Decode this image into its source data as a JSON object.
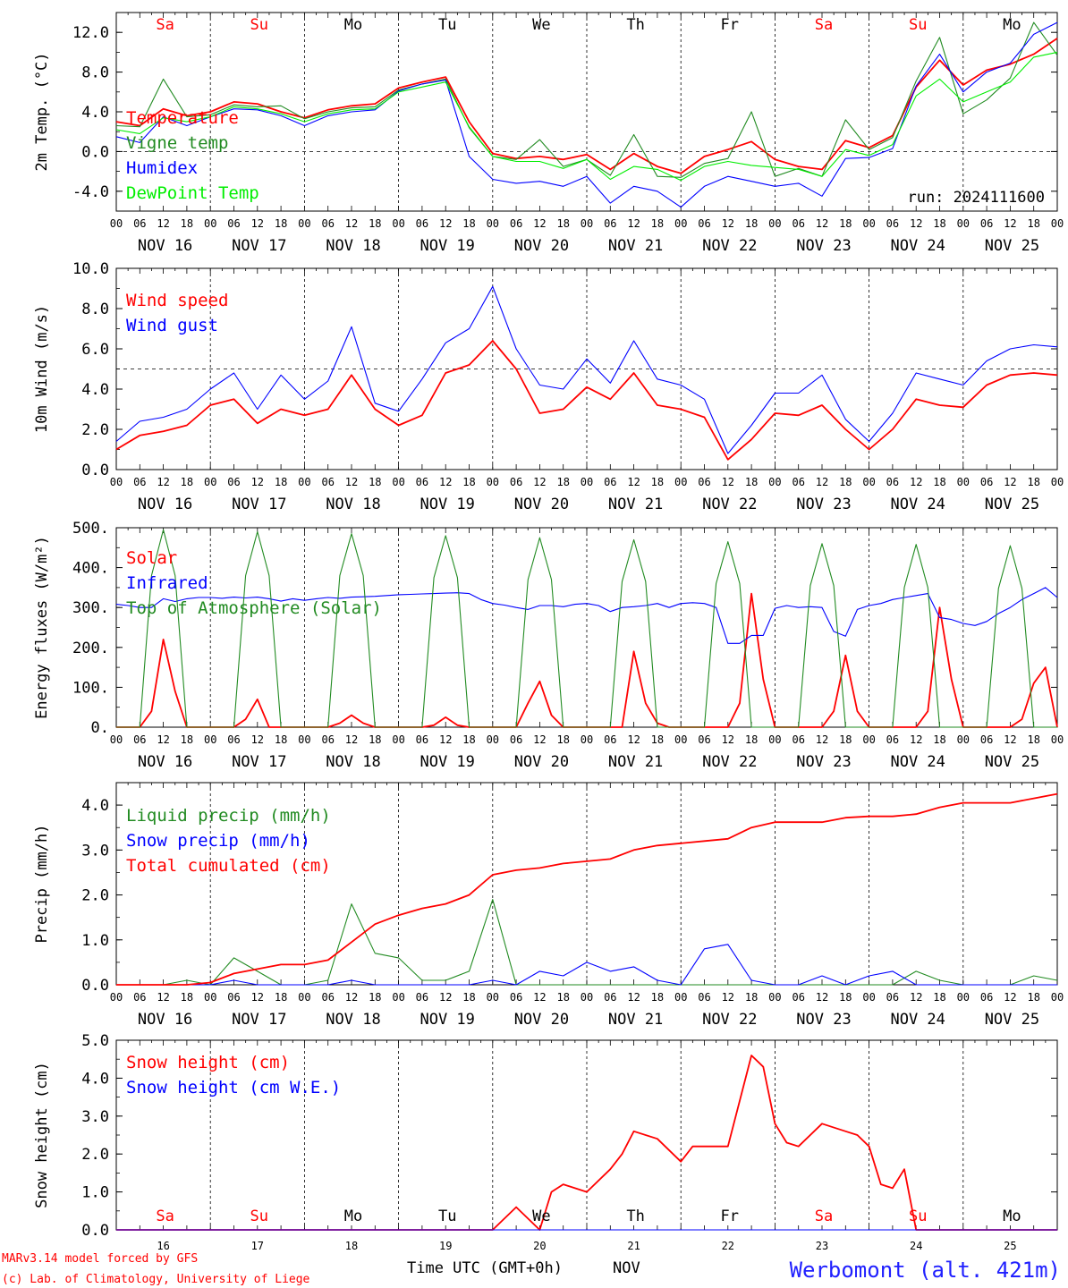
{
  "footer": {
    "model_line": "MARv3.14 model forced by GFS",
    "copyright_line": "(c) Lab. of Climatology, University of Liege",
    "xlabel": "Time UTC (GMT+0h)",
    "month": "NOV",
    "station": "Werbomont (alt. 421m)"
  },
  "day_abbrevs": [
    "Sa",
    "Su",
    "Mo",
    "Tu",
    "We",
    "Th",
    "Fr",
    "Sa",
    "Su",
    "Mo"
  ],
  "weekend_color": "#ff0000",
  "weekday_color": "#000000",
  "date_labels": [
    "NOV 16",
    "NOV 17",
    "NOV 18",
    "NOV 19",
    "NOV 20",
    "NOV 21",
    "NOV 22",
    "NOV 23",
    "NOV 24",
    "NOV 25"
  ],
  "day_numbers": [
    "16",
    "17",
    "18",
    "19",
    "20",
    "21",
    "22",
    "23",
    "24",
    "25"
  ],
  "hour_ticks": [
    "00",
    "06",
    "12",
    "18"
  ],
  "colors": {
    "red": "#ff0000",
    "green": "#228b22",
    "blue": "#0000ff",
    "lime": "#00ee00",
    "station": "#2020ff"
  },
  "chart_data": [
    {
      "type": "line",
      "ylabel": "2m Temp. (°C)",
      "ylim": [
        -6,
        14
      ],
      "yticks": [
        "-4.0",
        "0.0",
        "4.0",
        "8.0",
        "12.0"
      ],
      "ytick_values": [
        -4,
        0,
        4,
        8,
        12
      ],
      "reference_line": 0,
      "annotation": "run: 2024111600",
      "x_hours": [
        0,
        6,
        12,
        18,
        24,
        30,
        36,
        42,
        48,
        54,
        60,
        66,
        72,
        78,
        84,
        90,
        96,
        102,
        108,
        114,
        120,
        126,
        132,
        138,
        144,
        150,
        156,
        162,
        168,
        174,
        180,
        186,
        192,
        198,
        204,
        210,
        216,
        222,
        228,
        234,
        240
      ],
      "series": [
        {
          "name": "Temperature",
          "color": "red",
          "values": [
            3.0,
            2.6,
            4.3,
            3.6,
            4.0,
            5.0,
            4.8,
            4.0,
            3.4,
            4.2,
            4.6,
            4.8,
            6.4,
            7.0,
            7.5,
            3.0,
            -0.2,
            -0.7,
            -0.5,
            -0.8,
            -0.3,
            -1.8,
            -0.2,
            -1.5,
            -2.2,
            -0.5,
            0.2,
            1.0,
            -0.8,
            -1.5,
            -1.8,
            1.1,
            0.4,
            1.6,
            6.5,
            9.2,
            6.7,
            8.2,
            8.8,
            9.8,
            11.4
          ]
        },
        {
          "name": "Vigne temp",
          "color": "green",
          "values": [
            2.6,
            2.5,
            7.3,
            3.5,
            3.7,
            4.7,
            4.5,
            4.6,
            3.3,
            4.0,
            4.4,
            4.5,
            6.2,
            6.8,
            7.3,
            2.4,
            -0.5,
            -0.8,
            1.2,
            -1.5,
            -0.8,
            -2.4,
            1.7,
            -2.5,
            -2.6,
            -1.2,
            -0.7,
            4.0,
            -2.5,
            -1.7,
            -2.5,
            3.2,
            0.2,
            1.4,
            7.1,
            11.5,
            3.8,
            5.2,
            7.4,
            13.0,
            9.7
          ]
        },
        {
          "name": "Humidex",
          "color": "blue",
          "values": [
            1.5,
            0.9,
            3.5,
            2.6,
            3.5,
            4.3,
            4.2,
            3.6,
            2.6,
            3.6,
            4.0,
            4.2,
            6.1,
            6.8,
            7.2,
            -0.5,
            -2.8,
            -3.2,
            -3.0,
            -3.5,
            -2.5,
            -5.2,
            -3.5,
            -4.0,
            -5.6,
            -3.5,
            -2.5,
            -3.0,
            -3.5,
            -3.2,
            -4.5,
            -0.7,
            -0.6,
            0.3,
            6.6,
            9.8,
            6.0,
            8.0,
            8.9,
            11.8,
            13.0
          ]
        },
        {
          "name": "DewPoint Temp",
          "color": "lime",
          "values": [
            2.2,
            1.8,
            3.4,
            3.0,
            3.5,
            4.5,
            4.3,
            3.8,
            3.0,
            3.8,
            4.2,
            4.3,
            6.0,
            6.5,
            7.0,
            2.5,
            -0.5,
            -1.0,
            -1.0,
            -1.7,
            -0.8,
            -2.8,
            -1.5,
            -1.8,
            -2.9,
            -1.5,
            -1.0,
            -1.4,
            -1.6,
            -1.8,
            -2.5,
            0.2,
            -0.4,
            0.7,
            5.6,
            7.3,
            5.0,
            6.0,
            7.0,
            9.5,
            10.0
          ]
        }
      ]
    },
    {
      "type": "line",
      "ylabel": "10m Wind (m/s)",
      "ylim": [
        0,
        10
      ],
      "yticks": [
        "0.0",
        "2.0",
        "4.0",
        "6.0",
        "8.0",
        "10.0"
      ],
      "ytick_values": [
        0,
        2,
        4,
        6,
        8,
        10
      ],
      "reference_line": 5,
      "x_hours": [
        0,
        6,
        12,
        18,
        24,
        30,
        36,
        42,
        48,
        54,
        60,
        66,
        72,
        78,
        84,
        90,
        96,
        102,
        108,
        114,
        120,
        126,
        132,
        138,
        144,
        150,
        156,
        162,
        168,
        174,
        180,
        186,
        192,
        198,
        204,
        210,
        216,
        222,
        228,
        234,
        240
      ],
      "series": [
        {
          "name": "Wind speed",
          "color": "red",
          "values": [
            1.0,
            1.7,
            1.9,
            2.2,
            3.2,
            3.5,
            2.3,
            3.0,
            2.7,
            3.0,
            4.7,
            3.0,
            2.2,
            2.7,
            4.8,
            5.2,
            6.4,
            5.0,
            2.8,
            3.0,
            4.1,
            3.5,
            4.8,
            3.2,
            3.0,
            2.6,
            0.5,
            1.5,
            2.8,
            2.7,
            3.2,
            2.0,
            1.0,
            2.0,
            3.5,
            3.2,
            3.1,
            4.2,
            4.7,
            4.8,
            4.7
          ]
        },
        {
          "name": "Wind gust",
          "color": "blue",
          "values": [
            1.4,
            2.4,
            2.6,
            3.0,
            4.0,
            4.8,
            3.0,
            4.7,
            3.5,
            4.4,
            7.1,
            3.3,
            2.9,
            4.5,
            6.3,
            7.0,
            9.1,
            6.0,
            4.2,
            4.0,
            5.5,
            4.3,
            6.4,
            4.5,
            4.2,
            3.5,
            0.8,
            2.2,
            3.8,
            3.8,
            4.7,
            2.5,
            1.4,
            2.8,
            4.8,
            4.5,
            4.2,
            5.4,
            6.0,
            6.2,
            6.1
          ]
        }
      ]
    },
    {
      "type": "line",
      "ylabel": "Energy fluxes (W/m²)",
      "ylim": [
        0,
        500
      ],
      "yticks": [
        "0.",
        "100.",
        "200.",
        "300.",
        "400.",
        "500."
      ],
      "ytick_values": [
        0,
        100,
        200,
        300,
        400,
        500
      ],
      "x_hours": [
        0,
        3,
        6,
        9,
        12,
        15,
        18,
        21,
        24,
        27,
        30,
        33,
        36,
        39,
        42,
        45,
        48,
        51,
        54,
        57,
        60,
        63,
        66,
        69,
        72,
        75,
        78,
        81,
        84,
        87,
        90,
        93,
        96,
        99,
        102,
        105,
        108,
        111,
        114,
        117,
        120,
        123,
        126,
        129,
        132,
        135,
        138,
        141,
        144,
        147,
        150,
        153,
        156,
        159,
        162,
        165,
        168,
        171,
        174,
        177,
        180,
        183,
        186,
        189,
        192,
        195,
        198,
        201,
        204,
        207,
        210,
        213,
        216,
        219,
        222,
        225,
        228,
        231,
        234,
        237,
        240
      ],
      "series": [
        {
          "name": "Solar",
          "color": "red",
          "values": [
            0,
            0,
            0,
            40,
            220,
            90,
            0,
            0,
            0,
            0,
            0,
            20,
            70,
            0,
            0,
            0,
            0,
            0,
            0,
            10,
            30,
            10,
            0,
            0,
            0,
            0,
            0,
            5,
            25,
            5,
            0,
            0,
            0,
            0,
            0,
            60,
            115,
            30,
            0,
            0,
            0,
            0,
            0,
            0,
            190,
            60,
            10,
            0,
            0,
            0,
            0,
            0,
            0,
            60,
            335,
            120,
            0,
            0,
            0,
            0,
            0,
            40,
            180,
            40,
            0,
            0,
            0,
            0,
            0,
            40,
            300,
            120,
            0,
            0,
            0,
            0,
            0,
            20,
            110,
            150,
            0
          ]
        },
        {
          "name": "Infrared",
          "color": "blue",
          "values": [
            308,
            305,
            300,
            300,
            322,
            315,
            322,
            325,
            325,
            323,
            326,
            324,
            326,
            322,
            316,
            322,
            318,
            322,
            325,
            323,
            326,
            327,
            328,
            330,
            332,
            333,
            334,
            335,
            336,
            337,
            335,
            320,
            310,
            306,
            300,
            295,
            305,
            305,
            302,
            308,
            310,
            305,
            290,
            300,
            302,
            305,
            310,
            300,
            310,
            312,
            310,
            300,
            210,
            210,
            230,
            230,
            298,
            305,
            300,
            302,
            300,
            240,
            228,
            295,
            305,
            310,
            320,
            325,
            330,
            335,
            275,
            270,
            260,
            255,
            265,
            285,
            300,
            320,
            335,
            350,
            325
          ]
        },
        {
          "name": "Top of Atmosphere (Solar)",
          "color": "green",
          "values": [
            0,
            0,
            0,
            380,
            495,
            380,
            0,
            0,
            0,
            0,
            0,
            380,
            490,
            380,
            0,
            0,
            0,
            0,
            0,
            380,
            485,
            380,
            0,
            0,
            0,
            0,
            0,
            375,
            480,
            375,
            0,
            0,
            0,
            0,
            0,
            370,
            475,
            370,
            0,
            0,
            0,
            0,
            0,
            365,
            470,
            365,
            0,
            0,
            0,
            0,
            0,
            360,
            465,
            360,
            0,
            0,
            0,
            0,
            0,
            355,
            460,
            355,
            0,
            0,
            0,
            0,
            0,
            350,
            458,
            350,
            0,
            0,
            0,
            0,
            0,
            348,
            455,
            348,
            0,
            0,
            0
          ]
        }
      ]
    },
    {
      "type": "line",
      "ylabel": "Precip (mm/h)",
      "ylim": [
        0,
        4.5
      ],
      "yticks": [
        "0.0",
        "1.0",
        "2.0",
        "3.0",
        "4.0"
      ],
      "ytick_values": [
        0,
        1,
        2,
        3,
        4
      ],
      "x_hours": [
        0,
        6,
        12,
        18,
        24,
        30,
        36,
        42,
        48,
        54,
        60,
        66,
        72,
        78,
        84,
        90,
        96,
        102,
        108,
        114,
        120,
        126,
        132,
        138,
        144,
        150,
        156,
        162,
        168,
        174,
        180,
        186,
        192,
        198,
        204,
        210,
        216,
        222,
        228,
        234,
        240
      ],
      "series": [
        {
          "name": "Liquid precip (mm/h)",
          "color": "green",
          "values": [
            0,
            0,
            0,
            0.1,
            0,
            0.6,
            0.3,
            0,
            0,
            0.1,
            1.8,
            0.7,
            0.6,
            0.1,
            0.1,
            0.3,
            1.9,
            0,
            0,
            0,
            0,
            0,
            0,
            0,
            0,
            0,
            0,
            0,
            0,
            0,
            0,
            0,
            0,
            0,
            0.3,
            0.1,
            0,
            0,
            0,
            0.2,
            0.1
          ]
        },
        {
          "name": "Snow precip (mm/h)",
          "color": "blue",
          "values": [
            0,
            0,
            0,
            0,
            0,
            0.1,
            0,
            0,
            0,
            0,
            0.1,
            0,
            0,
            0,
            0,
            0,
            0.1,
            0,
            0.3,
            0.2,
            0.5,
            0.3,
            0.4,
            0.1,
            0,
            0.8,
            0.9,
            0.1,
            0,
            0,
            0.2,
            0,
            0.2,
            0.3,
            0,
            0,
            0,
            0,
            0,
            0,
            0
          ]
        },
        {
          "name": "Total cumulated (cm)",
          "color": "red",
          "values": [
            0,
            0,
            0,
            0,
            0.05,
            0.25,
            0.35,
            0.45,
            0.45,
            0.55,
            0.95,
            1.35,
            1.55,
            1.7,
            1.8,
            2.0,
            2.45,
            2.55,
            2.6,
            2.7,
            2.75,
            2.8,
            3.0,
            3.1,
            3.15,
            3.2,
            3.25,
            3.5,
            3.62,
            3.62,
            3.62,
            3.72,
            3.75,
            3.75,
            3.8,
            3.95,
            4.05,
            4.05,
            4.05,
            4.15,
            4.25
          ]
        }
      ]
    },
    {
      "type": "line",
      "ylabel": "Snow height (cm)",
      "ylim": [
        0,
        5
      ],
      "yticks": [
        "0.0",
        "1.0",
        "2.0",
        "3.0",
        "4.0",
        "5.0"
      ],
      "ytick_values": [
        0,
        1,
        2,
        3,
        4,
        5
      ],
      "x_hours": [
        0,
        24,
        48,
        72,
        96,
        102,
        108,
        111,
        114,
        117,
        120,
        126,
        129,
        132,
        138,
        144,
        147,
        150,
        156,
        162,
        165,
        168,
        171,
        174,
        180,
        186,
        189,
        192,
        195,
        198,
        201,
        204,
        210,
        216,
        222,
        228,
        234,
        240
      ],
      "series": [
        {
          "name": "Snow height (cm)",
          "color": "red",
          "values": [
            0,
            0,
            0,
            0,
            0,
            0.6,
            0,
            1.0,
            1.2,
            1.1,
            1.0,
            1.6,
            2.0,
            2.6,
            2.4,
            1.8,
            2.2,
            2.2,
            2.2,
            4.6,
            4.3,
            2.8,
            2.3,
            2.2,
            2.8,
            2.6,
            2.5,
            2.2,
            1.2,
            1.1,
            1.6,
            0,
            0,
            0,
            0,
            0,
            0,
            0
          ]
        },
        {
          "name": "Snow height (cm W.E.)",
          "color": "blue",
          "values": [
            0,
            0,
            0,
            0,
            0,
            0,
            0,
            0,
            0,
            0,
            0,
            0,
            0,
            0,
            0,
            0,
            0,
            0,
            0,
            0,
            0,
            0,
            0,
            0,
            0,
            0,
            0,
            0,
            0,
            0,
            0,
            0,
            0,
            0,
            0,
            0,
            0,
            0
          ]
        }
      ]
    }
  ]
}
